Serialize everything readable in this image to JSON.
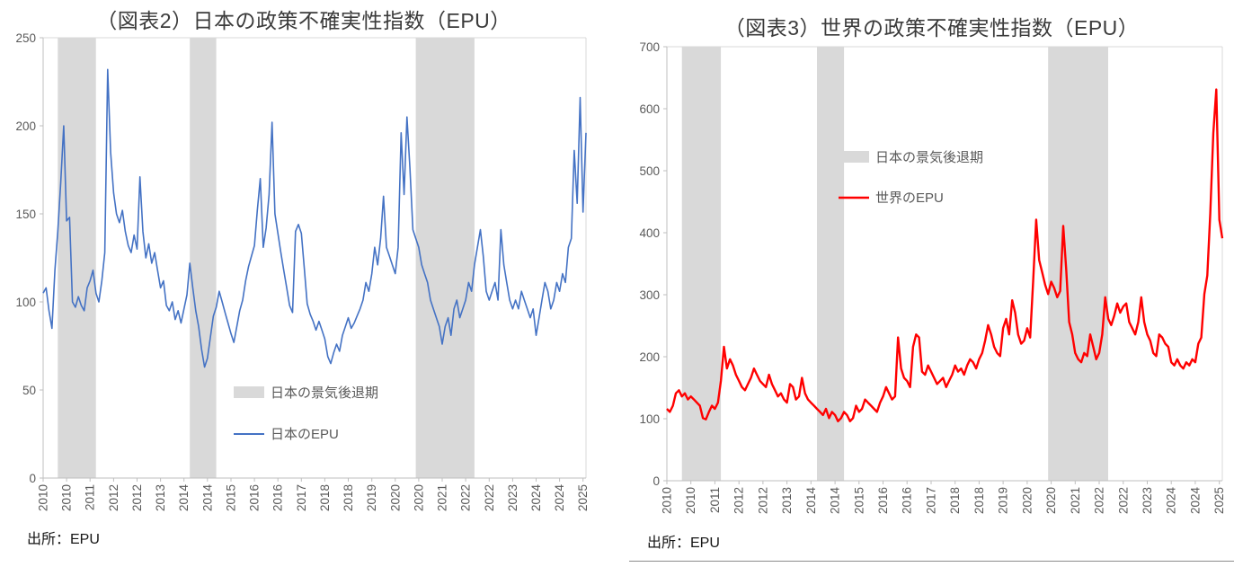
{
  "chart_data": [
    {
      "type": "line",
      "title": "（図表2）日本の政策不確実性指数（EPU）",
      "source": "出所：EPU",
      "series_name": "日本のEPU",
      "series_id": "japan-epu",
      "line_color": "#4472C4",
      "band_color": "#D9D9D9",
      "ylim": [
        0,
        250
      ],
      "y_ticks": [
        0,
        50,
        100,
        150,
        200,
        250
      ],
      "x_range": [
        "2010-01",
        "2025-06"
      ],
      "x_freq": "monthly",
      "x_tick_every_months": 8,
      "x_tick_labels": [
        "2010",
        "2010",
        "2011",
        "2012",
        "2012",
        "2013",
        "2014",
        "2014",
        "2015",
        "2016",
        "2016",
        "2017",
        "2018",
        "2018",
        "2019",
        "2020",
        "2020",
        "2021",
        "2022",
        "2022",
        "2023",
        "2024",
        "2024",
        "2025"
      ],
      "legend": [
        {
          "swatch": "band",
          "label": "日本の景気後退期"
        },
        {
          "swatch": "line",
          "label": "日本のEPU"
        }
      ],
      "recession_bands_months": [
        [
          5,
          18
        ],
        [
          50,
          59
        ],
        [
          127,
          147
        ]
      ],
      "values": [
        105,
        108,
        95,
        85,
        118,
        140,
        168,
        200,
        146,
        148,
        100,
        97,
        103,
        98,
        95,
        108,
        112,
        118,
        105,
        100,
        112,
        128,
        232,
        185,
        162,
        150,
        145,
        152,
        140,
        132,
        128,
        138,
        130,
        171,
        140,
        125,
        133,
        122,
        128,
        118,
        108,
        112,
        98,
        95,
        100,
        90,
        95,
        88,
        96,
        104,
        122,
        108,
        95,
        86,
        73,
        63,
        68,
        80,
        92,
        97,
        106,
        100,
        94,
        88,
        82,
        77,
        86,
        95,
        101,
        112,
        120,
        126,
        132,
        152,
        170,
        131,
        142,
        161,
        202,
        150,
        139,
        128,
        118,
        108,
        98,
        94,
        140,
        144,
        139,
        119,
        99,
        93,
        89,
        84,
        89,
        84,
        79,
        69,
        65,
        71,
        76,
        72,
        81,
        86,
        91,
        85,
        88,
        92,
        96,
        101,
        111,
        106,
        116,
        131,
        121,
        136,
        160,
        131,
        126,
        121,
        116,
        131,
        196,
        161,
        205,
        176,
        141,
        136,
        131,
        121,
        116,
        111,
        101,
        96,
        91,
        86,
        76,
        86,
        91,
        81,
        96,
        101,
        91,
        96,
        101,
        111,
        106,
        121,
        131,
        141,
        126,
        106,
        101,
        106,
        111,
        101,
        141,
        121,
        111,
        101,
        96,
        101,
        96,
        106,
        101,
        96,
        91,
        96,
        81,
        91,
        101,
        111,
        106,
        96,
        101,
        111,
        106,
        116,
        111,
        131,
        136,
        186,
        156,
        216,
        151,
        196
      ]
    },
    {
      "type": "line",
      "title": "（図表3）世界の政策不確実性指数（EPU）",
      "source": "出所：EPU",
      "series_name": "世界のEPU",
      "series_id": "world-epu",
      "line_color": "#FF0000",
      "band_color": "#D9D9D9",
      "ylim": [
        0,
        700
      ],
      "y_ticks": [
        0,
        100,
        200,
        300,
        400,
        500,
        600,
        700
      ],
      "x_range": [
        "2010-01",
        "2025-06"
      ],
      "x_freq": "monthly",
      "x_tick_every_months": 8,
      "x_tick_labels": [
        "2010",
        "2010",
        "2011",
        "2012",
        "2012",
        "2013",
        "2014",
        "2014",
        "2015",
        "2016",
        "2016",
        "2017",
        "2018",
        "2018",
        "2019",
        "2020",
        "2020",
        "2021",
        "2022",
        "2022",
        "2023",
        "2024",
        "2024",
        "2025"
      ],
      "legend": [
        {
          "swatch": "band",
          "label": "日本の景気後退期"
        },
        {
          "swatch": "line",
          "label": "世界のEPU"
        }
      ],
      "recession_bands_months": [
        [
          5,
          18
        ],
        [
          50,
          59
        ],
        [
          127,
          147
        ]
      ],
      "values": [
        116,
        111,
        121,
        141,
        146,
        136,
        141,
        131,
        136,
        131,
        126,
        121,
        101,
        99,
        111,
        121,
        116,
        126,
        161,
        216,
        181,
        196,
        186,
        171,
        161,
        151,
        146,
        156,
        166,
        181,
        171,
        161,
        156,
        151,
        171,
        156,
        146,
        136,
        141,
        131,
        126,
        156,
        151,
        131,
        136,
        166,
        141,
        131,
        126,
        121,
        116,
        111,
        106,
        116,
        101,
        111,
        106,
        96,
        101,
        111,
        106,
        96,
        101,
        121,
        111,
        116,
        131,
        126,
        121,
        116,
        111,
        126,
        136,
        151,
        141,
        131,
        136,
        231,
        181,
        166,
        161,
        151,
        216,
        236,
        231,
        176,
        171,
        186,
        176,
        166,
        156,
        161,
        166,
        151,
        161,
        171,
        186,
        176,
        181,
        171,
        186,
        196,
        191,
        181,
        196,
        206,
        226,
        251,
        236,
        216,
        206,
        201,
        246,
        261,
        236,
        291,
        271,
        236,
        221,
        226,
        246,
        231,
        321,
        421,
        356,
        336,
        316,
        301,
        321,
        311,
        296,
        306,
        411,
        341,
        256,
        236,
        206,
        196,
        191,
        206,
        201,
        236,
        216,
        196,
        206,
        236,
        296,
        261,
        251,
        266,
        286,
        271,
        281,
        286,
        256,
        246,
        236,
        256,
        296,
        256,
        236,
        226,
        206,
        201,
        236,
        231,
        221,
        216,
        191,
        186,
        196,
        186,
        181,
        191,
        186,
        196,
        191,
        221,
        231,
        301,
        331,
        431,
        561,
        631,
        421,
        391
      ]
    }
  ]
}
